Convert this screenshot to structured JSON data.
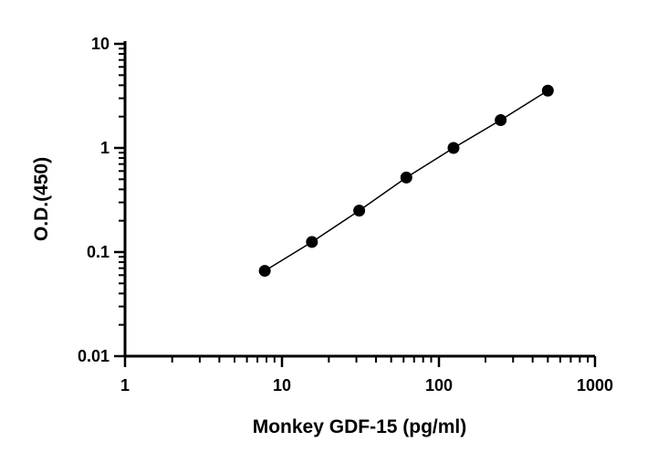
{
  "chart_data": {
    "type": "scatter",
    "xlabel": "Monkey GDF-15 (pg/ml)",
    "ylabel": "O.D.(450)",
    "x_scale": "log",
    "y_scale": "log",
    "xlim": [
      1,
      1000
    ],
    "ylim": [
      0.01,
      10
    ],
    "x_ticks": [
      "1",
      "10",
      "100",
      "1000"
    ],
    "y_ticks": [
      "0.01",
      "0.1",
      "1",
      "10"
    ],
    "grid": false,
    "series": [
      {
        "x": [
          7.8,
          15.6,
          31.25,
          62.5,
          125,
          250,
          500
        ],
        "y": [
          0.066,
          0.125,
          0.25,
          0.52,
          1.0,
          1.85,
          3.55
        ],
        "fit_line": true
      }
    ]
  }
}
